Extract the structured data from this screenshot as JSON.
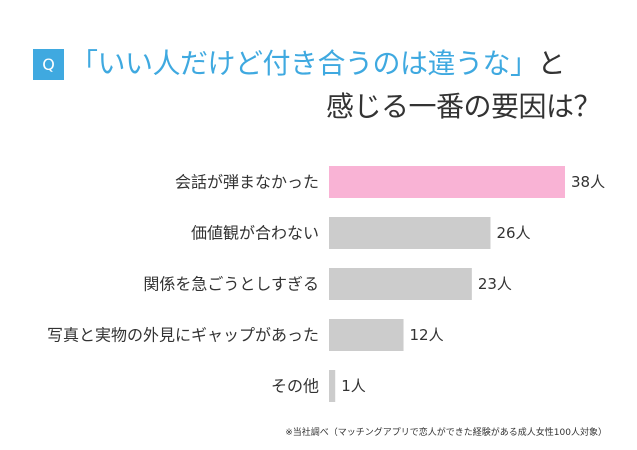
{
  "question": {
    "badge": "Q",
    "quote": "「いい人だけど付き合うのは違うな」",
    "suffix": "と",
    "line2": "感じる一番の要因は？"
  },
  "chart_data": {
    "type": "bar",
    "orientation": "horizontal",
    "categories": [
      "会話が弾まなかった",
      "価値観が合わない",
      "関係を急ごうとしすぎる",
      "写真と実物の外見にギャップがあった",
      "その他"
    ],
    "values": [
      38,
      26,
      23,
      12,
      1
    ],
    "value_labels": [
      "38人",
      "26人",
      "23人",
      "12人",
      "1人"
    ],
    "highlight_index": 0,
    "xlim": [
      0,
      38
    ],
    "grid": false,
    "colors": {
      "highlight": "#f9b3d5",
      "default": "#cccccc"
    }
  },
  "footnote": "※当社調べ（マッチングアプリで恋人ができた経験がある成人女性100人対象）"
}
